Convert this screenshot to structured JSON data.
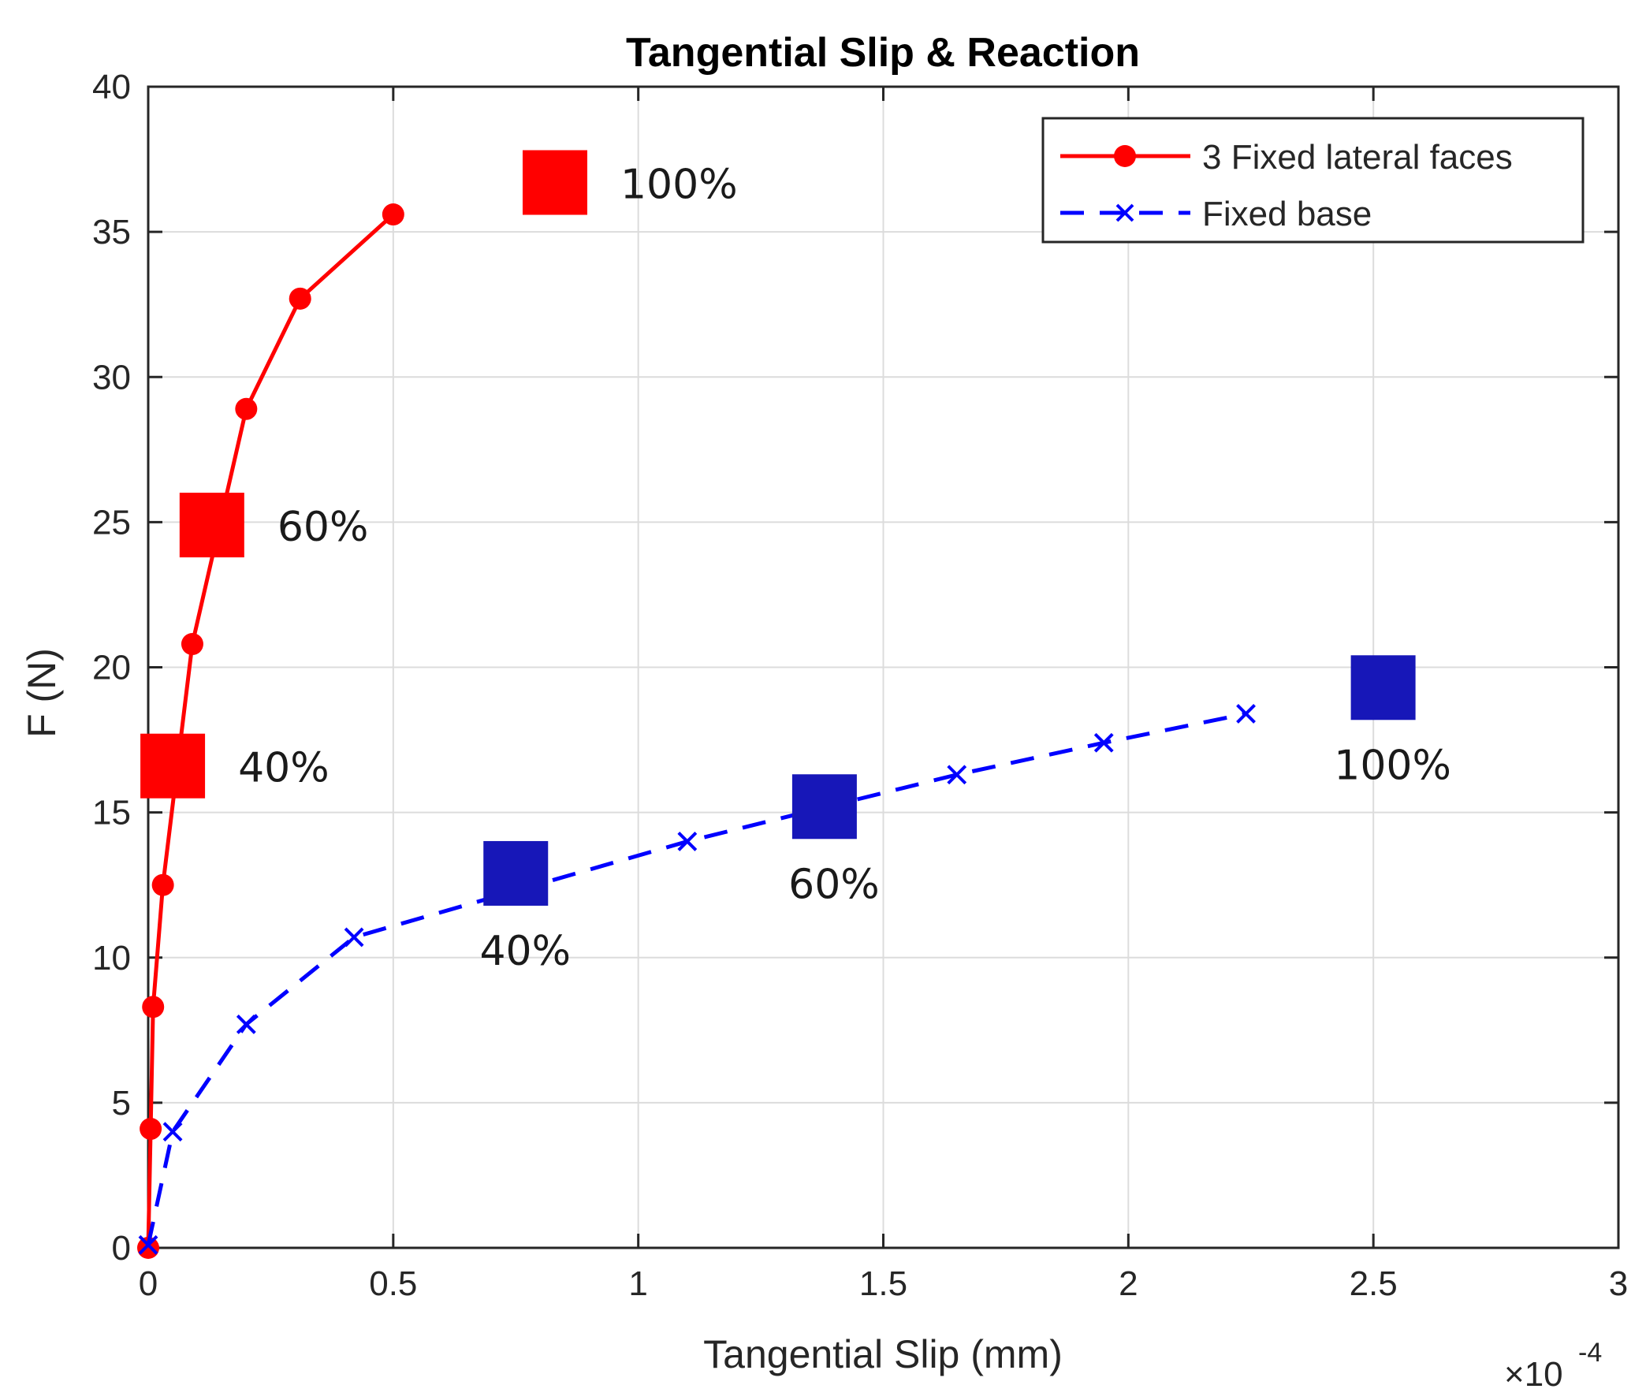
{
  "chart_data": {
    "type": "line",
    "title": "Tangential Slip & Reaction",
    "xlabel": "Tangential Slip (mm)",
    "ylabel": "F (N)",
    "x_multiplier_prefix": "×10",
    "x_multiplier_exponent": "-4",
    "xlim": [
      0,
      3
    ],
    "ylim": [
      0,
      40
    ],
    "xticks": [
      0,
      0.5,
      1,
      1.5,
      2,
      2.5,
      3
    ],
    "xtick_labels": [
      "0",
      "0.5",
      "1",
      "1.5",
      "2",
      "2.5",
      "3"
    ],
    "yticks": [
      0,
      5,
      10,
      15,
      20,
      25,
      30,
      35,
      40
    ],
    "ytick_labels": [
      "0",
      "5",
      "10",
      "15",
      "20",
      "25",
      "30",
      "35",
      "40"
    ],
    "grid": true,
    "legend_position": "top-right",
    "series": [
      {
        "name": "3 Fixed lateral faces",
        "color": "#ff0000",
        "line_style": "solid",
        "marker": "circle",
        "x": [
          0,
          0.005,
          0.01,
          0.03,
          0.09,
          0.2,
          0.31,
          0.5
        ],
        "y": [
          0,
          4.1,
          8.3,
          12.5,
          20.8,
          28.9,
          32.7,
          35.6
        ]
      },
      {
        "name": "Fixed base",
        "color": "#0000ff",
        "line_style": "dashed",
        "marker": "x",
        "x": [
          0,
          0.05,
          0.2,
          0.42,
          1.1,
          1.65,
          1.95,
          2.24
        ],
        "y": [
          0.1,
          4.0,
          7.7,
          10.7,
          14.0,
          16.3,
          17.4,
          18.4
        ]
      }
    ],
    "annotations": [
      {
        "series": 0,
        "label": "40%",
        "x": 0.05,
        "y": 16.6,
        "color": "#ff0000",
        "label_side": "right"
      },
      {
        "series": 0,
        "label": "60%",
        "x": 0.13,
        "y": 24.9,
        "color": "#ff0000",
        "label_side": "right"
      },
      {
        "series": 0,
        "label": "100%",
        "x": 0.83,
        "y": 36.7,
        "color": "#ff0000",
        "label_side": "right"
      },
      {
        "series": 1,
        "label": "40%",
        "x": 0.75,
        "y": 12.9,
        "color": "#1717b8",
        "label_side": "below"
      },
      {
        "series": 1,
        "label": "60%",
        "x": 1.38,
        "y": 15.2,
        "color": "#1717b8",
        "label_side": "below"
      },
      {
        "series": 1,
        "label": "100%",
        "x": 2.52,
        "y": 19.3,
        "color": "#1717b8",
        "label_side": "below"
      }
    ]
  }
}
